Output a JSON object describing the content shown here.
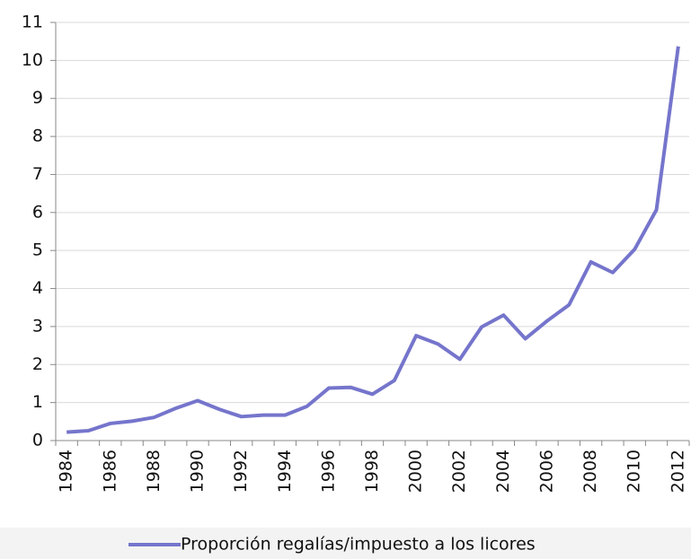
{
  "chart_data": {
    "type": "line",
    "categories": [
      "1984",
      null,
      "1986",
      null,
      "1988",
      null,
      "1990",
      null,
      "1992",
      null,
      "1994",
      null,
      "1996",
      null,
      "1998",
      null,
      "2000",
      null,
      "2002",
      null,
      "2004",
      null,
      "2006",
      null,
      "2008",
      null,
      "2010",
      null,
      "2012"
    ],
    "series": [
      {
        "name": "Proporción regalías/impuesto a los licores",
        "color": "#7575cc",
        "values": [
          0.22,
          0.26,
          0.45,
          0.51,
          0.61,
          0.85,
          1.05,
          0.82,
          0.63,
          0.67,
          0.67,
          0.9,
          1.38,
          1.4,
          1.22,
          1.58,
          2.76,
          2.54,
          2.14,
          2.99,
          3.3,
          2.68,
          3.15,
          3.57,
          4.7,
          4.42,
          5.03,
          6.07,
          10.37
        ]
      }
    ],
    "ylim": [
      0,
      11
    ],
    "yticks": [
      0,
      1,
      2,
      3,
      4,
      5,
      6,
      7,
      8,
      9,
      10,
      11
    ],
    "grid": true,
    "legend": "bottom"
  }
}
